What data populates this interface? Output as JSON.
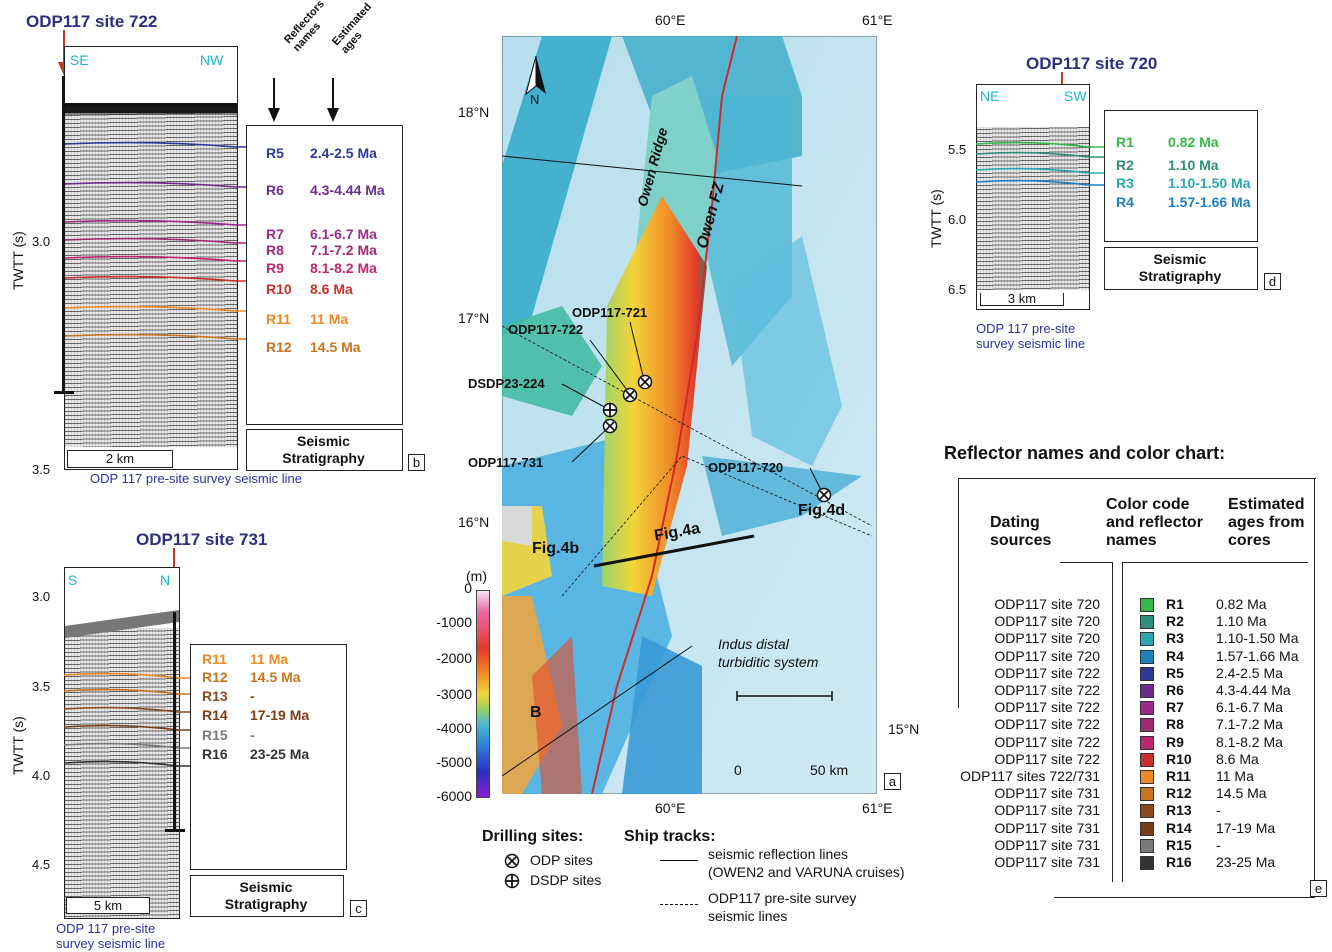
{
  "panel_b": {
    "title": "ODP117 site 722",
    "dir_left": "SE",
    "dir_right": "NW",
    "y_axis_title": "TWTT (s)",
    "ticks": [
      "3.0",
      "3.5"
    ],
    "col_head_1": "Reflectors names",
    "col_head_2": "Estimated ages",
    "scale": "2 km",
    "caption": "ODP 117 pre-site survey seismic line",
    "strat_line1": "Seismic",
    "strat_line2": "Stratigraphy",
    "letter": "b",
    "reflectors": [
      {
        "name": "R5",
        "age": "2.4-2.5 Ma",
        "color": "#2b3a97"
      },
      {
        "name": "R6",
        "age": "4.3-4.44 Ma",
        "color": "#6e2c91"
      },
      {
        "name": "R7",
        "age": "6.1-6.7 Ma",
        "color": "#9a2a8c"
      },
      {
        "name": "R8",
        "age": "7.1-7.2 Ma",
        "color": "#a02a72"
      },
      {
        "name": "R9",
        "age": "8.1-8.2 Ma",
        "color": "#c0266e"
      },
      {
        "name": "R10",
        "age": "8.6 Ma",
        "color": "#c9302a"
      },
      {
        "name": "R11",
        "age": "11 Ma",
        "color": "#ee8a26"
      },
      {
        "name": "R12",
        "age": "14.5 Ma",
        "color": "#c8741f"
      }
    ]
  },
  "panel_c": {
    "title": "ODP117 site 731",
    "dir_left": "S",
    "dir_right": "N",
    "y_axis_title": "TWTT (s)",
    "ticks": [
      "3.0",
      "3.5",
      "4.0",
      "4.5"
    ],
    "scale": "5 km",
    "caption": "ODP 117 pre-site survey seismic line",
    "strat_line1": "Seismic",
    "strat_line2": "Stratigraphy",
    "letter": "c",
    "reflectors": [
      {
        "name": "R11",
        "age": "11 Ma",
        "color": "#ee8a26"
      },
      {
        "name": "R12",
        "age": "14.5 Ma",
        "color": "#c8741f"
      },
      {
        "name": "R13",
        "age": "-",
        "color": "#8a4a1e"
      },
      {
        "name": "R14",
        "age": "17-19 Ma",
        "color": "#7a3e17"
      },
      {
        "name": "R15",
        "age": "-",
        "color": "#7a7a7a"
      },
      {
        "name": "R16",
        "age": "23-25 Ma",
        "color": "#333333"
      }
    ]
  },
  "panel_d": {
    "title": "ODP117 site 720",
    "dir_left": "NE",
    "dir_right": "SW",
    "y_axis_title": "TWTT (s)",
    "ticks": [
      "5.5",
      "6.0",
      "6.5"
    ],
    "scale": "3 km",
    "caption": "ODP 117 pre-site survey seismic line",
    "strat_line1": "Seismic",
    "strat_line2": "Stratigraphy",
    "letter": "d",
    "reflectors": [
      {
        "name": "R1",
        "age": "0.82 Ma",
        "color": "#35b84a"
      },
      {
        "name": "R2",
        "age": "1.10 Ma",
        "color": "#2f8f7a"
      },
      {
        "name": "R3",
        "age": "1.10-1.50 Ma",
        "color": "#29a8b0"
      },
      {
        "name": "R4",
        "age": "1.57-1.66 Ma",
        "color": "#1f7fc4"
      }
    ]
  },
  "map": {
    "top_labels": [
      "60°E",
      "61°E"
    ],
    "bottom_labels": [
      "60°E",
      "61°E"
    ],
    "left_labels": [
      "18°N",
      "17°N",
      "16°N"
    ],
    "right_label": "15°N",
    "north": "N",
    "features": {
      "owen_ridge": "Owen Ridge",
      "owen_fz": "Owen FZ",
      "indus_line1": "Indus distal",
      "indus_line2": "turbiditic system",
      "fig4a": "Fig.4a",
      "fig4b": "Fig.4b",
      "fig4d": "Fig.4d",
      "b_label": "B"
    },
    "sites": {
      "s721": "ODP117-721",
      "s722": "ODP117-722",
      "s224": "DSDP23-224",
      "s731": "ODP117-731",
      "s720": "ODP117-720"
    },
    "depth_unit": "(m)",
    "depth_ticks": [
      "0",
      "-1000",
      "-2000",
      "-3000",
      "-4000",
      "-5000",
      "-6000"
    ],
    "scale": "0",
    "scale_km": "50 km",
    "letter": "a"
  },
  "legend": {
    "drilling_title": "Drilling sites:",
    "odp": "ODP sites",
    "dsdp": "DSDP sites",
    "ship_title": "Ship tracks:",
    "solid_line1": "seismic reflection lines",
    "solid_line2": "(OWEN2 and VARUNA cruises)",
    "dotted_line1": "ODP117 pre-site survey",
    "dotted_line2": "seismic lines"
  },
  "color_chart": {
    "title": "Reflector names and color chart:",
    "head_sources_1": "Dating",
    "head_sources_2": "sources",
    "head_color_1": "Color code",
    "head_color_2": "and reflector",
    "head_color_3": "names",
    "head_age_1": "Estimated",
    "head_age_2": "ages from",
    "head_age_3": "cores",
    "letter": "e",
    "rows": [
      {
        "source": "ODP117 site 720",
        "name": "R1",
        "age": "0.82 Ma",
        "color": "#35b84a"
      },
      {
        "source": "ODP117 site 720",
        "name": "R2",
        "age": "1.10 Ma",
        "color": "#2f8f7a"
      },
      {
        "source": "ODP117 site 720",
        "name": "R3",
        "age": "1.10-1.50 Ma",
        "color": "#29a8b0"
      },
      {
        "source": "ODP117 site 720",
        "name": "R4",
        "age": "1.57-1.66 Ma",
        "color": "#1f7fc4"
      },
      {
        "source": "ODP117 site 722",
        "name": "R5",
        "age": "2.4-2.5 Ma",
        "color": "#2b3a97"
      },
      {
        "source": "ODP117 site 722",
        "name": "R6",
        "age": "4.3-4.44 Ma",
        "color": "#6e2c91"
      },
      {
        "source": "ODP117 site 722",
        "name": "R7",
        "age": "6.1-6.7 Ma",
        "color": "#9a2a8c"
      },
      {
        "source": "ODP117 site 722",
        "name": "R8",
        "age": "7.1-7.2 Ma",
        "color": "#a02a72"
      },
      {
        "source": "ODP117 site 722",
        "name": "R9",
        "age": "8.1-8.2 Ma",
        "color": "#c0266e"
      },
      {
        "source": "ODP117 site 722",
        "name": "R10",
        "age": "8.6 Ma",
        "color": "#c9302a"
      },
      {
        "source": "ODP117 sites 722/731",
        "name": "R11",
        "age": "11 Ma",
        "color": "#ee8a26"
      },
      {
        "source": "ODP117 site 731",
        "name": "R12",
        "age": "14.5 Ma",
        "color": "#c8741f"
      },
      {
        "source": "ODP117 site 731",
        "name": "R13",
        "age": "-",
        "color": "#8a4a1e"
      },
      {
        "source": "ODP117 site 731",
        "name": "R14",
        "age": "17-19 Ma",
        "color": "#7a3e17"
      },
      {
        "source": "ODP117 site 731",
        "name": "R15",
        "age": "-",
        "color": "#7a7a7a"
      },
      {
        "source": "ODP117 site 731",
        "name": "R16",
        "age": "23-25 Ma",
        "color": "#333333"
      }
    ]
  }
}
